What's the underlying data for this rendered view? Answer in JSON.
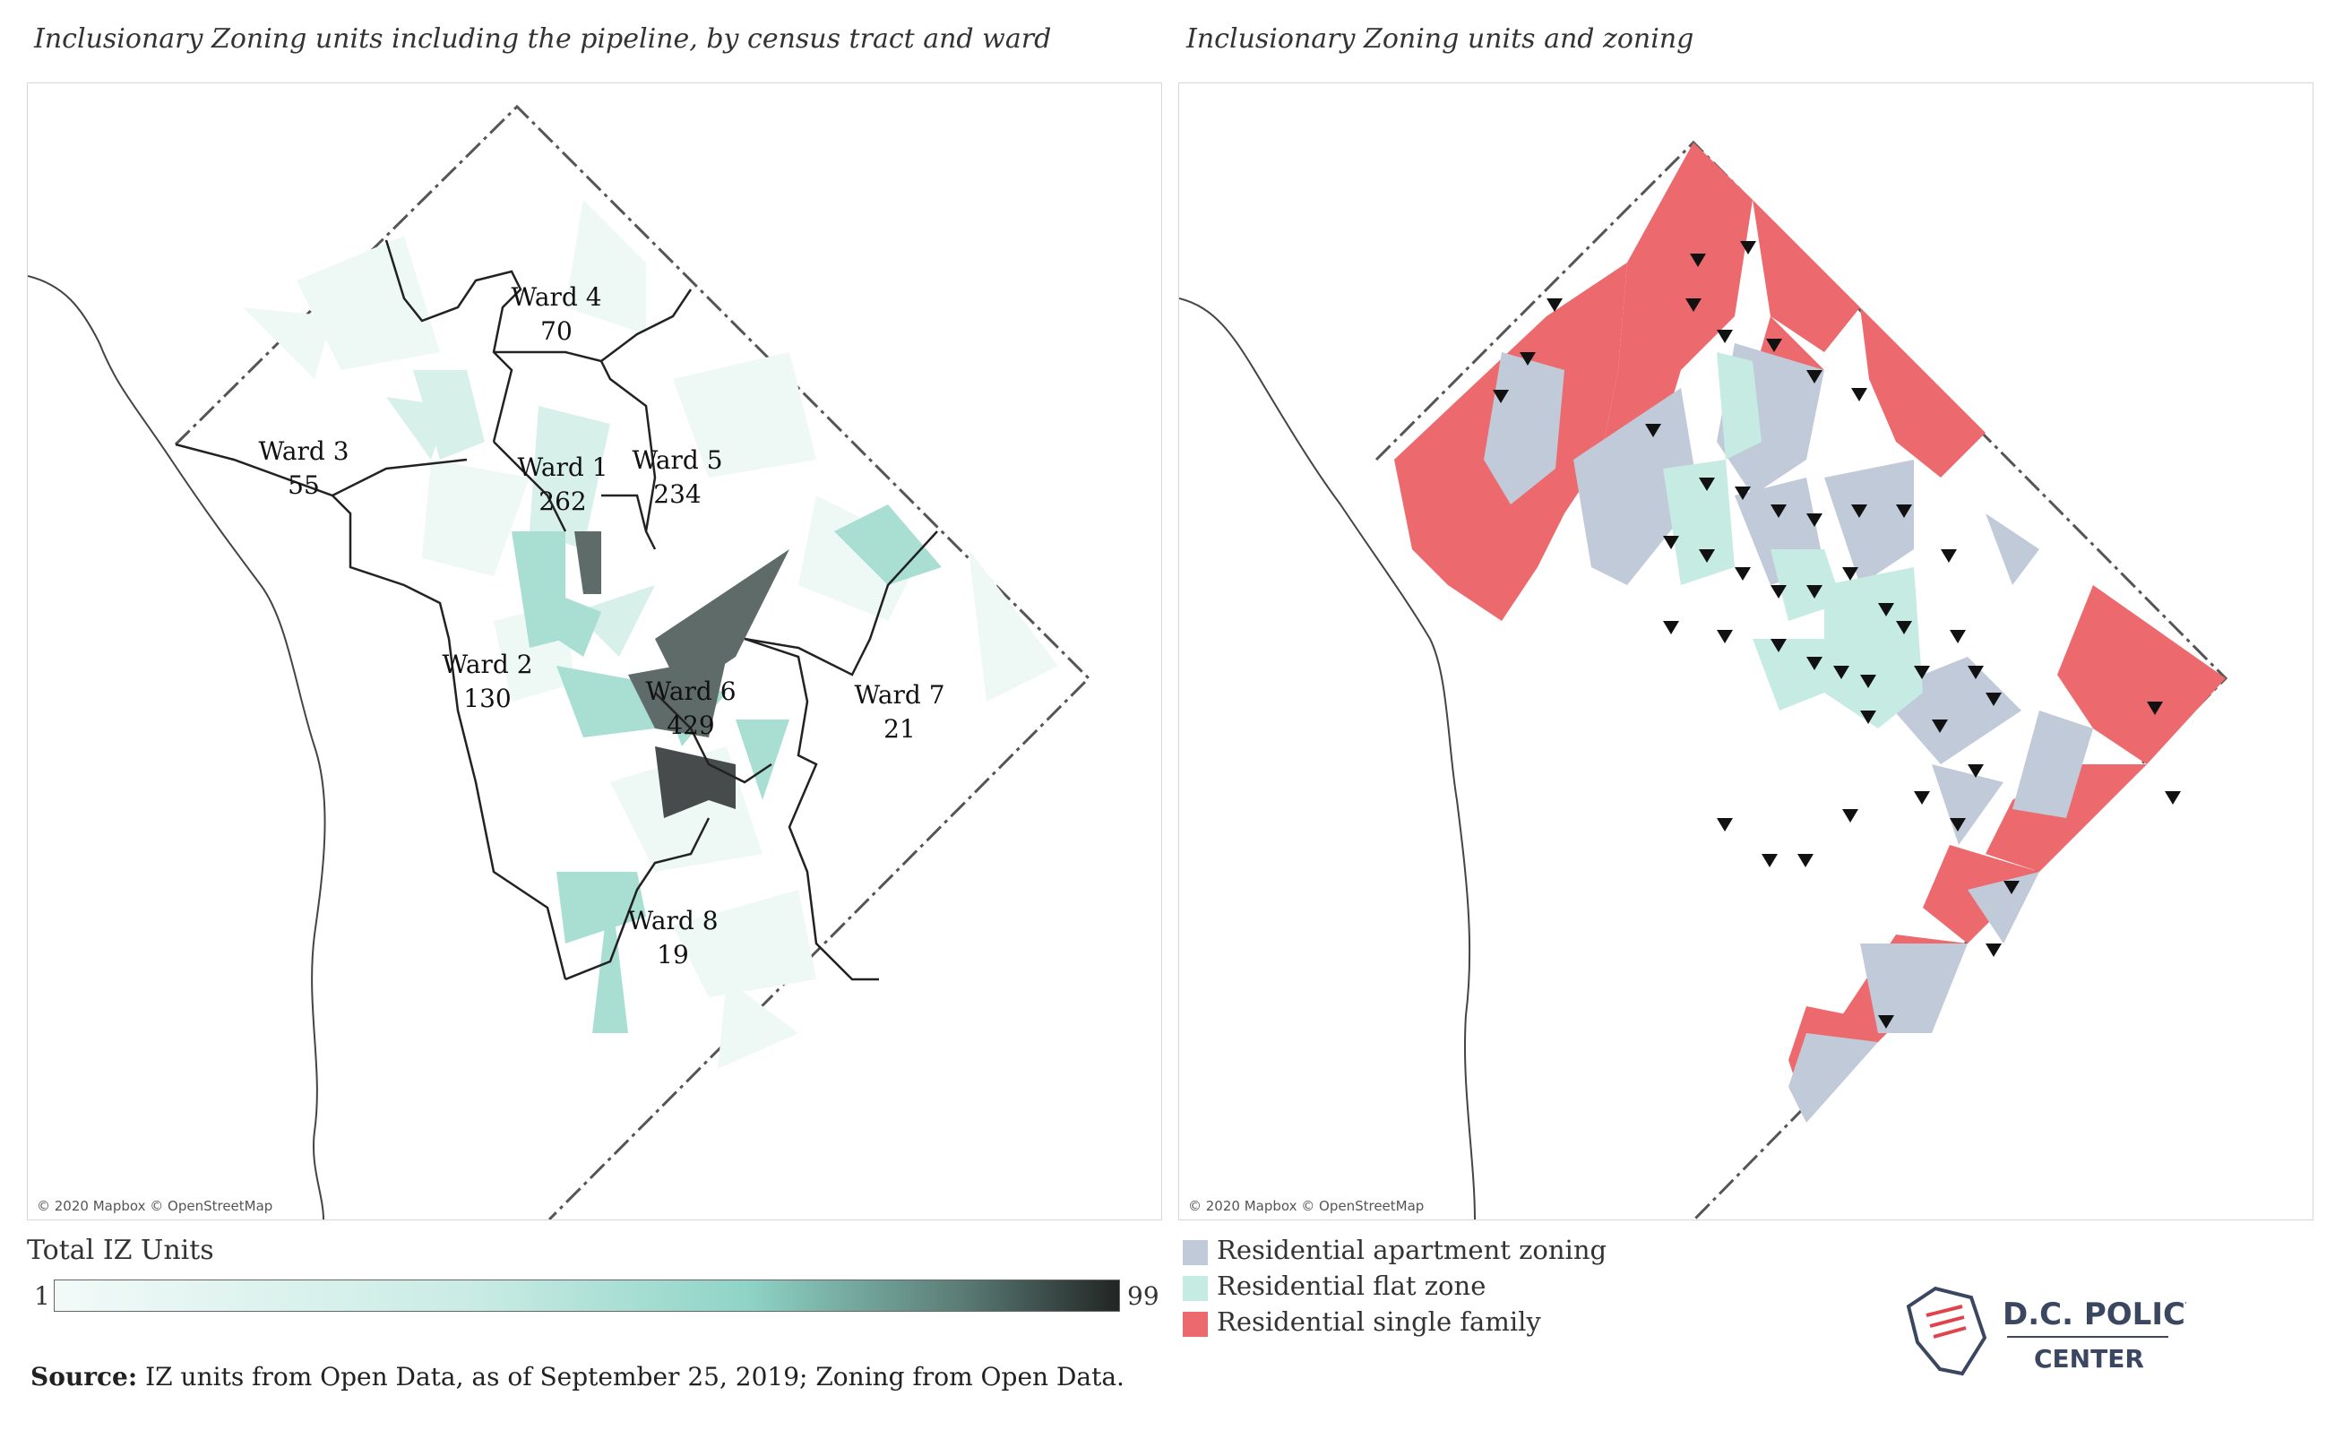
{
  "left_panel": {
    "title": "Inclusionary Zoning units including the pipeline, by census tract and ward",
    "attribution": "© 2020 Mapbox © OpenStreetMap",
    "wards": [
      {
        "name": "Ward 4",
        "value": "70"
      },
      {
        "name": "Ward 3",
        "value": "55"
      },
      {
        "name": "Ward 1",
        "value": "262"
      },
      {
        "name": "Ward 5",
        "value": "234"
      },
      {
        "name": "Ward 2",
        "value": "130"
      },
      {
        "name": "Ward 6",
        "value": "429"
      },
      {
        "name": "Ward 7",
        "value": "21"
      },
      {
        "name": "Ward 8",
        "value": "19"
      }
    ]
  },
  "right_panel": {
    "title": "Inclusionary Zoning units and zoning",
    "attribution": "© 2020 Mapbox © OpenStreetMap"
  },
  "color_legend": {
    "title": "Total IZ Units",
    "min": "1",
    "max": "99"
  },
  "zoning_legend": [
    {
      "label": "Residential apartment zoning",
      "color": "#c0cad8"
    },
    {
      "label": "Residential flat zone",
      "color": "#c6ebe3"
    },
    {
      "label": "Residential single family",
      "color": "#ec6a6e"
    }
  ],
  "source": {
    "label": "Source:",
    "text": "IZ units from Open Data, as of September 25, 2019; Zoning from Open Data."
  },
  "logo": {
    "line1": "D.C. POLICY",
    "line2": "CENTER"
  },
  "colors": {
    "iz_low": "#eef8f5",
    "iz_mid": "#a9ded3",
    "iz_high": "#4b4f4f",
    "apartment": "#c0cad8",
    "flat": "#c6ebe3",
    "single_family": "#ec6a6e"
  }
}
